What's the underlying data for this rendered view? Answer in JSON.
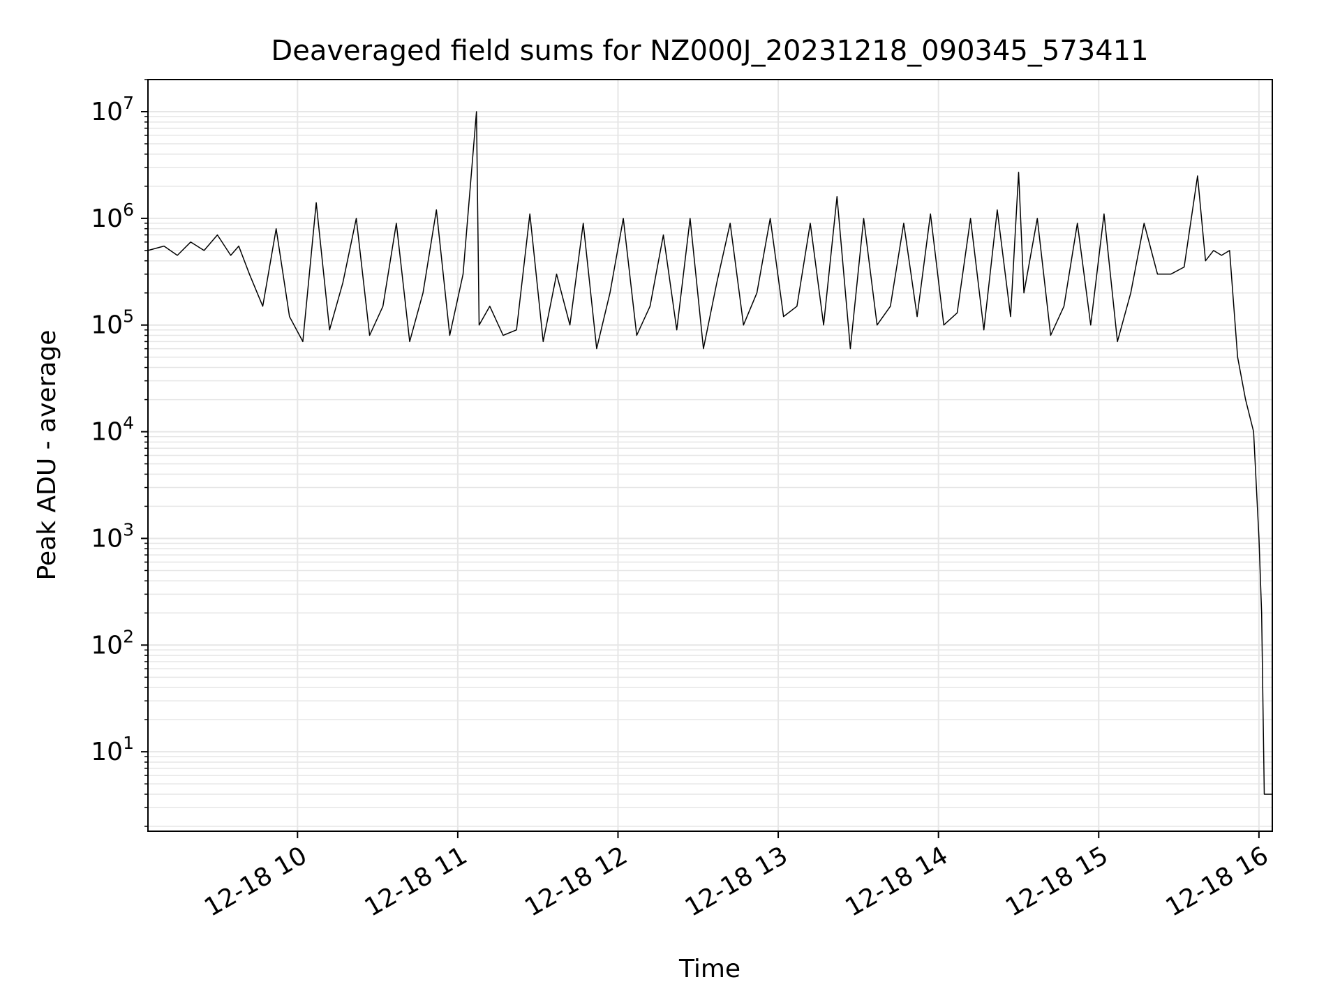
{
  "chart_data": {
    "type": "line",
    "title": "Deaveraged field sums for NZ000J_20231218_090345_573411",
    "xlabel": "Time",
    "ylabel": "Peak ADU - average",
    "yscale": "log",
    "xlim": [
      "2023-12-18 09:04",
      "2023-12-18 16:05"
    ],
    "ylim": [
      1.8,
      20000000
    ],
    "grid": true,
    "grid_color": "#e6e6e6",
    "line_color": "#000000",
    "x_ticks": [
      {
        "value": "2023-12-18 10:00",
        "label": "12-18 10"
      },
      {
        "value": "2023-12-18 11:00",
        "label": "12-18 11"
      },
      {
        "value": "2023-12-18 12:00",
        "label": "12-18 12"
      },
      {
        "value": "2023-12-18 13:00",
        "label": "12-18 13"
      },
      {
        "value": "2023-12-18 14:00",
        "label": "12-18 14"
      },
      {
        "value": "2023-12-18 15:00",
        "label": "12-18 15"
      },
      {
        "value": "2023-12-18 16:00",
        "label": "12-18 16"
      }
    ],
    "y_ticks": [
      {
        "value": 10,
        "base": "10",
        "exp": "1"
      },
      {
        "value": 100,
        "base": "10",
        "exp": "2"
      },
      {
        "value": 1000,
        "base": "10",
        "exp": "3"
      },
      {
        "value": 10000,
        "base": "10",
        "exp": "4"
      },
      {
        "value": 100000,
        "base": "10",
        "exp": "5"
      },
      {
        "value": 1000000,
        "base": "10",
        "exp": "6"
      },
      {
        "value": 10000000,
        "base": "10",
        "exp": "7"
      }
    ],
    "series": [
      {
        "x": [
          "2023-12-18 09:04",
          "2023-12-18 09:10",
          "2023-12-18 09:15",
          "2023-12-18 09:20",
          "2023-12-18 09:25",
          "2023-12-18 09:30",
          "2023-12-18 09:35",
          "2023-12-18 09:38",
          "2023-12-18 09:42",
          "2023-12-18 09:47",
          "2023-12-18 09:52",
          "2023-12-18 09:57",
          "2023-12-18 10:02",
          "2023-12-18 10:07",
          "2023-12-18 10:12",
          "2023-12-18 10:17",
          "2023-12-18 10:22",
          "2023-12-18 10:27",
          "2023-12-18 10:32",
          "2023-12-18 10:37",
          "2023-12-18 10:42",
          "2023-12-18 10:47",
          "2023-12-18 10:52",
          "2023-12-18 10:57",
          "2023-12-18 11:02",
          "2023-12-18 11:07",
          "2023-12-18 11:08",
          "2023-12-18 11:12",
          "2023-12-18 11:17",
          "2023-12-18 11:22",
          "2023-12-18 11:27",
          "2023-12-18 11:32",
          "2023-12-18 11:37",
          "2023-12-18 11:42",
          "2023-12-18 11:47",
          "2023-12-18 11:52",
          "2023-12-18 11:57",
          "2023-12-18 12:02",
          "2023-12-18 12:07",
          "2023-12-18 12:12",
          "2023-12-18 12:17",
          "2023-12-18 12:22",
          "2023-12-18 12:27",
          "2023-12-18 12:32",
          "2023-12-18 12:37",
          "2023-12-18 12:42",
          "2023-12-18 12:47",
          "2023-12-18 12:52",
          "2023-12-18 12:57",
          "2023-12-18 13:02",
          "2023-12-18 13:07",
          "2023-12-18 13:12",
          "2023-12-18 13:17",
          "2023-12-18 13:22",
          "2023-12-18 13:27",
          "2023-12-18 13:32",
          "2023-12-18 13:37",
          "2023-12-18 13:42",
          "2023-12-18 13:47",
          "2023-12-18 13:52",
          "2023-12-18 13:57",
          "2023-12-18 14:02",
          "2023-12-18 14:07",
          "2023-12-18 14:12",
          "2023-12-18 14:17",
          "2023-12-18 14:22",
          "2023-12-18 14:27",
          "2023-12-18 14:30",
          "2023-12-18 14:32",
          "2023-12-18 14:37",
          "2023-12-18 14:42",
          "2023-12-18 14:47",
          "2023-12-18 14:52",
          "2023-12-18 14:57",
          "2023-12-18 15:02",
          "2023-12-18 15:07",
          "2023-12-18 15:12",
          "2023-12-18 15:17",
          "2023-12-18 15:22",
          "2023-12-18 15:27",
          "2023-12-18 15:32",
          "2023-12-18 15:37",
          "2023-12-18 15:40",
          "2023-12-18 15:43",
          "2023-12-18 15:46",
          "2023-12-18 15:49",
          "2023-12-18 15:52",
          "2023-12-18 15:55",
          "2023-12-18 15:58",
          "2023-12-18 16:00",
          "2023-12-18 16:01",
          "2023-12-18 16:02",
          "2023-12-18 16:03",
          "2023-12-18 16:05"
        ],
        "y": [
          500000,
          550000,
          450000,
          600000,
          500000,
          700000,
          450000,
          550000,
          300000,
          150000,
          800000,
          120000,
          70000,
          1400000,
          90000,
          250000,
          1000000,
          80000,
          150000,
          900000,
          70000,
          200000,
          1200000,
          80000,
          300000,
          10000000,
          100000,
          150000,
          80000,
          90000,
          1100000,
          70000,
          300000,
          100000,
          900000,
          60000,
          200000,
          1000000,
          80000,
          150000,
          700000,
          90000,
          1000000,
          60000,
          250000,
          900000,
          100000,
          200000,
          1000000,
          120000,
          150000,
          900000,
          100000,
          1600000,
          60000,
          1000000,
          100000,
          150000,
          900000,
          120000,
          1100000,
          100000,
          130000,
          1000000,
          90000,
          1200000,
          120000,
          2700000,
          200000,
          1000000,
          80000,
          150000,
          900000,
          100000,
          1100000,
          70000,
          200000,
          900000,
          300000,
          300000,
          350000,
          2500000,
          400000,
          500000,
          450000,
          500000,
          50000,
          20000,
          10000,
          1000,
          200,
          4,
          4,
          4
        ]
      }
    ]
  }
}
